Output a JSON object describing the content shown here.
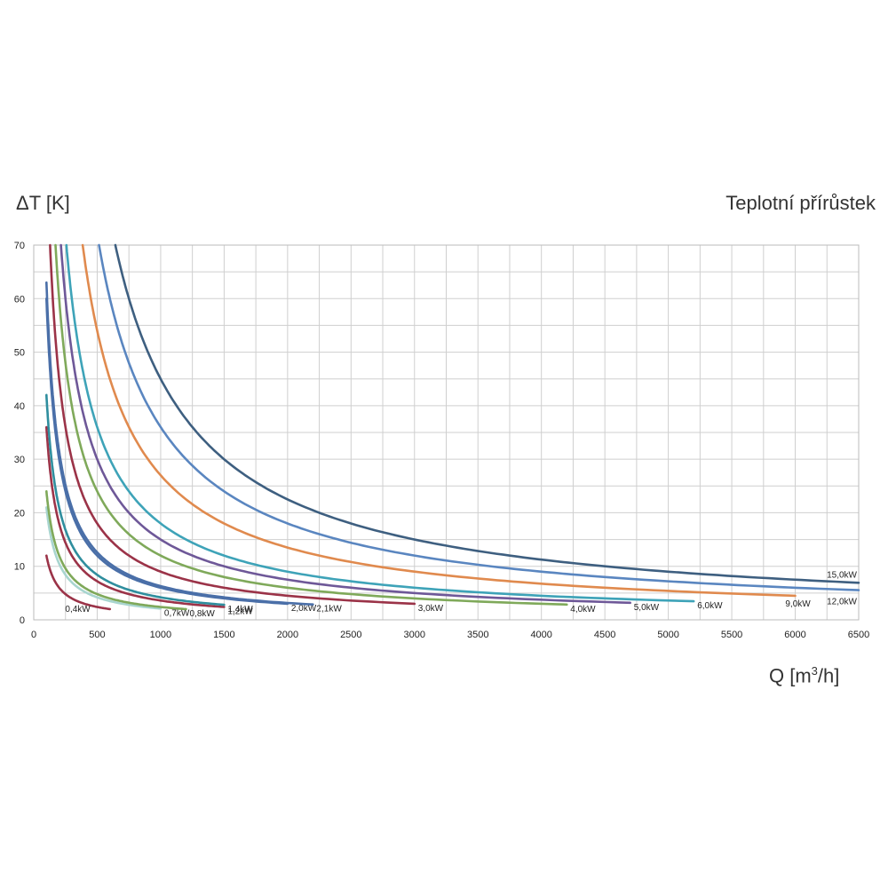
{
  "chart_data": {
    "type": "line",
    "title": "Teplotní přírůstek",
    "ylabel": "ΔT [K]",
    "xlabel": "Q [m3/h]",
    "xlim": [
      0,
      6500
    ],
    "ylim": [
      0,
      70
    ],
    "xticks": [
      0,
      500,
      1000,
      1500,
      2000,
      2500,
      3000,
      3500,
      4000,
      4500,
      5000,
      5500,
      6000,
      6500
    ],
    "yticks": [
      0,
      10,
      20,
      30,
      40,
      50,
      60,
      70
    ],
    "grid": true,
    "series": [
      {
        "name": "0,4kW",
        "power_kw": 0.4,
        "x_range": [
          100,
          600
        ],
        "color": "#9b3348"
      },
      {
        "name": "0,7kW",
        "power_kw": 0.7,
        "x_range": [
          100,
          1000
        ],
        "color": "#a8d5cf"
      },
      {
        "name": "0,8kW",
        "power_kw": 0.8,
        "x_range": [
          100,
          1200
        ],
        "color": "#7fa95a"
      },
      {
        "name": "1,2kW",
        "power_kw": 1.2,
        "x_range": [
          100,
          1500
        ],
        "color": "#9b3348"
      },
      {
        "name": "1,4kW",
        "power_kw": 1.4,
        "x_range": [
          100,
          1500
        ],
        "color": "#2f8e9e"
      },
      {
        "name": "2,0kW",
        "power_kw": 2.0,
        "x_range": [
          100,
          2000
        ],
        "color": "#4a6fa8"
      },
      {
        "name": "2,1kW",
        "power_kw": 2.1,
        "x_range": [
          100,
          2200
        ],
        "color": "#4a6fa8"
      },
      {
        "name": "3,0kW",
        "power_kw": 3.0,
        "x_range": [
          120,
          3000
        ],
        "color": "#9b3348"
      },
      {
        "name": "4,0kW",
        "power_kw": 4.0,
        "x_range": [
          160,
          4200
        ],
        "color": "#7fa95a"
      },
      {
        "name": "5,0kW",
        "power_kw": 5.0,
        "x_range": [
          200,
          4700
        ],
        "color": "#6e5898"
      },
      {
        "name": "6,0kW",
        "power_kw": 6.0,
        "x_range": [
          240,
          5200
        ],
        "color": "#3ea3b8"
      },
      {
        "name": "9,0kW",
        "power_kw": 9.0,
        "x_range": [
          360,
          6000
        ],
        "color": "#e08a4e"
      },
      {
        "name": "12,0kW",
        "power_kw": 12.0,
        "x_range": [
          480,
          6500
        ],
        "color": "#5a86c0"
      },
      {
        "name": "15,0kW",
        "power_kw": 15.0,
        "x_range": [
          600,
          6500
        ],
        "color": "#3e5f80"
      }
    ]
  }
}
